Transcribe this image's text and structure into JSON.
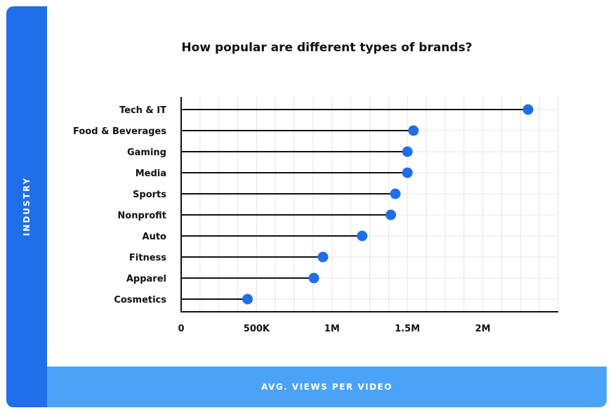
{
  "colors": {
    "band_blue": "#1f6fe8",
    "footer_blue": "#4aa3f6",
    "dot_blue": "#1f6fe8",
    "line_black": "#111111",
    "grid_gray": "#e4e4e4"
  },
  "chart_data": {
    "type": "scatter",
    "style": "horizontal lollipop",
    "title": "How popular are different types of brands?",
    "xlabel": "AVG. VIEWS PER VIDEO",
    "ylabel": "INDUSTRY",
    "categories": [
      "Tech & IT",
      "Food & Beverages",
      "Gaming",
      "Media",
      "Sports",
      "Nonprofit",
      "Auto",
      "Fitness",
      "Apparel",
      "Cosmetics"
    ],
    "values": [
      2300000,
      1540000,
      1500000,
      1500000,
      1420000,
      1390000,
      1200000,
      940000,
      880000,
      440000
    ],
    "xlim": [
      0,
      2500000
    ],
    "xticks": [
      {
        "value": 0,
        "label": "0"
      },
      {
        "value": 500000,
        "label": "500K"
      },
      {
        "value": 1000000,
        "label": "1M"
      },
      {
        "value": 1500000,
        "label": "1.5M"
      },
      {
        "value": 2000000,
        "label": "2M"
      }
    ],
    "grid": true
  }
}
